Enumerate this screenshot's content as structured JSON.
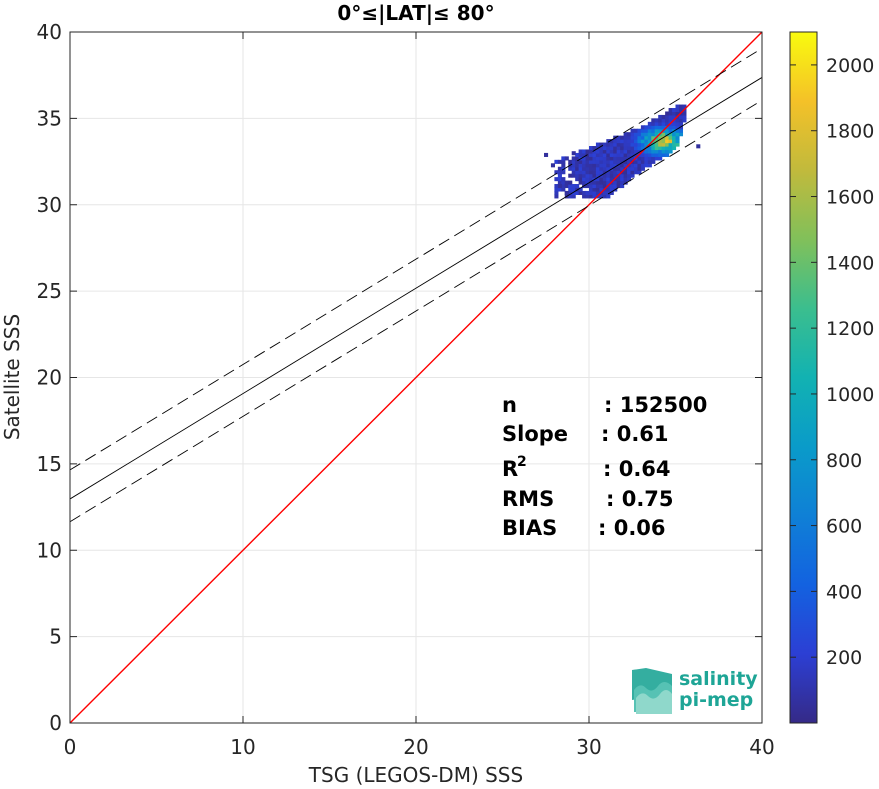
{
  "chart_data": {
    "type": "heatmap",
    "title": "0°≤|LAT|≤ 80°",
    "xlabel": "TSG (LEGOS-DM) SSS",
    "ylabel": "Satellite SSS",
    "xlim": [
      0,
      40
    ],
    "ylim": [
      0,
      40
    ],
    "xticks": [
      0,
      10,
      20,
      30,
      40
    ],
    "yticks": [
      0,
      5,
      10,
      15,
      20,
      25,
      30,
      35,
      40
    ],
    "grid": true,
    "colorbar": {
      "min": 0,
      "max": 2100,
      "ticks": [
        200,
        400,
        600,
        800,
        1000,
        1200,
        1400,
        1600,
        1800,
        2000
      ],
      "colormap": "parula"
    },
    "lines": [
      {
        "label": "one-to-one",
        "slope": 1.0,
        "intercept": 0.0,
        "style": "solid",
        "color": "#ff0000"
      },
      {
        "label": "regression",
        "slope": 0.61,
        "intercept": 12.97,
        "style": "solid",
        "color": "#000000"
      },
      {
        "label": "regression-upper",
        "slope": 0.61,
        "intercept": 14.65,
        "style": "dashed",
        "color": "#000000"
      },
      {
        "label": "regression-lower",
        "slope": 0.61,
        "intercept": 11.65,
        "style": "dashed",
        "color": "#000000"
      }
    ],
    "density_blobs": [
      {
        "x_range": [
          28.0,
          35.6
        ],
        "y_range": [
          30.4,
          35.7
        ],
        "peak": [
          34.2,
          33.6
        ],
        "max_count": 2000
      }
    ],
    "stats": {
      "rows": [
        {
          "key": "n",
          "sup": "",
          "value": ": 152500"
        },
        {
          "key": "Slope",
          "sup": "",
          "value": ": 0.61"
        },
        {
          "key": "R",
          "sup": "2",
          "value": ": 0.64"
        },
        {
          "key": "RMS",
          "sup": "",
          "value": ": 0.75"
        },
        {
          "key": "BIAS",
          "sup": "",
          "value": ": 0.06"
        }
      ]
    }
  },
  "logo": {
    "line1": "salinity",
    "line2": "pi-mep",
    "color": "#1ea596"
  }
}
